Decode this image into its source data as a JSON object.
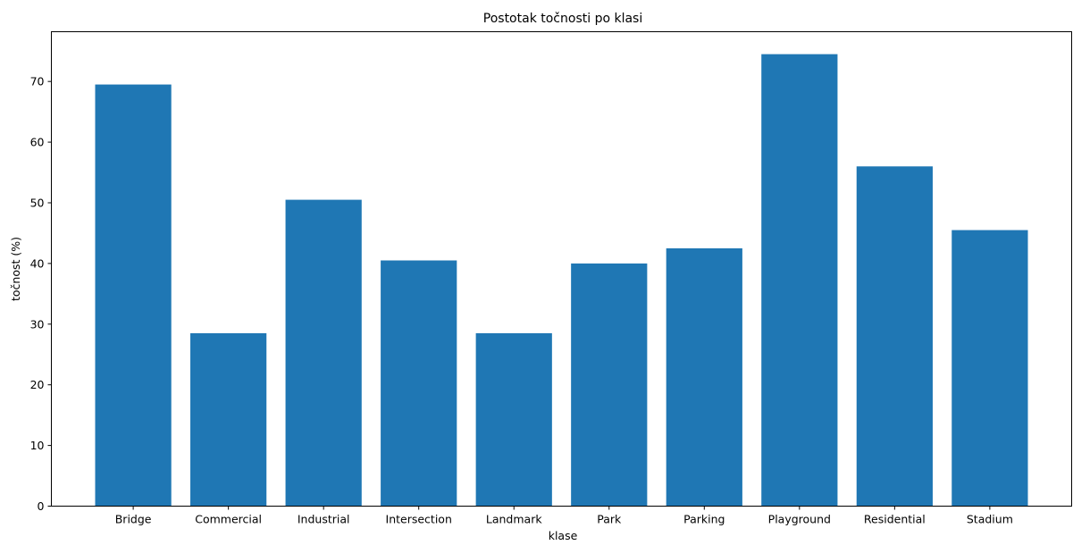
{
  "chart_data": {
    "type": "bar",
    "title": "Postotak točnosti po klasi",
    "xlabel": "klase",
    "ylabel": "točnost (%)",
    "categories": [
      "Bridge",
      "Commercial",
      "Industrial",
      "Intersection",
      "Landmark",
      "Park",
      "Parking",
      "Playground",
      "Residential",
      "Stadium"
    ],
    "values": [
      69.5,
      28.5,
      50.5,
      40.5,
      28.5,
      40.0,
      42.5,
      74.5,
      56.0,
      45.5
    ],
    "ylim": [
      0,
      78.2
    ],
    "yticks": [
      0,
      10,
      20,
      30,
      40,
      50,
      60,
      70
    ],
    "grid": false,
    "legend": "none",
    "bar_color": "#1f77b4"
  }
}
